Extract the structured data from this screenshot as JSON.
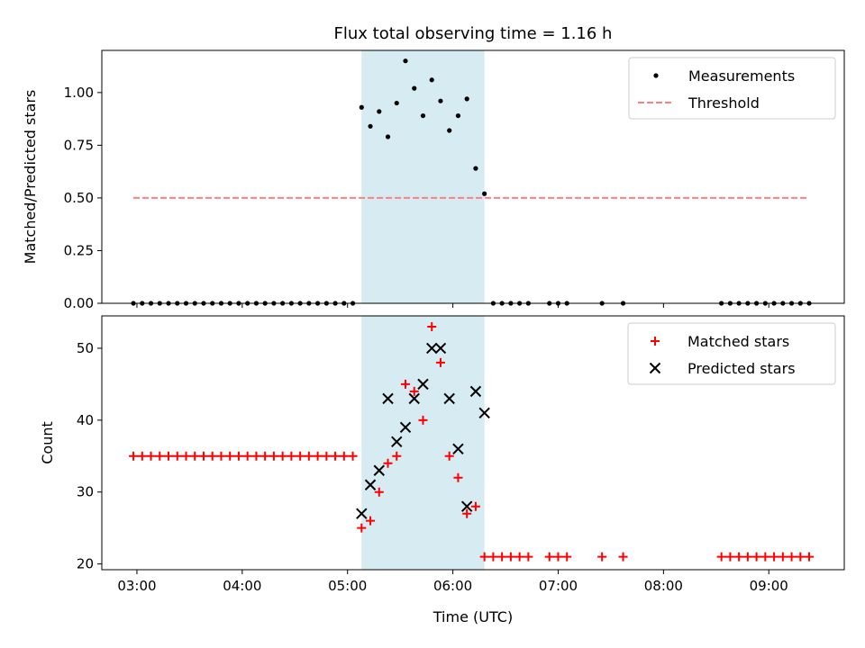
{
  "figure": {
    "title": "Flux total observing time = 1.16 h"
  },
  "chart_data": [
    {
      "type": "scatter",
      "ylabel": "Matched/Predicted stars",
      "xlabel": "",
      "xlim": [
        "02:40",
        "09:43"
      ],
      "ylim": [
        0,
        1.2
      ],
      "yticks": [
        0,
        0.25,
        0.5,
        0.75,
        1.0
      ],
      "ytick_labels": [
        "0.00",
        "0.25",
        "0.50",
        "0.75",
        "1.00"
      ],
      "xticks": [
        "03:00",
        "04:00",
        "05:00",
        "06:00",
        "07:00",
        "08:00",
        "09:00"
      ],
      "shaded_span": [
        "05:08",
        "06:18"
      ],
      "legend": {
        "position": "upper right",
        "entries": [
          "Measurements",
          "Threshold"
        ]
      },
      "series": [
        {
          "name": "Measurements",
          "marker": "dot",
          "color": "#000000",
          "points": [
            [
              "02:58",
              0
            ],
            [
              "03:03",
              0
            ],
            [
              "03:08",
              0
            ],
            [
              "03:13",
              0
            ],
            [
              "03:18",
              0
            ],
            [
              "03:23",
              0
            ],
            [
              "03:28",
              0
            ],
            [
              "03:33",
              0
            ],
            [
              "03:38",
              0
            ],
            [
              "03:43",
              0
            ],
            [
              "03:48",
              0
            ],
            [
              "03:53",
              0
            ],
            [
              "03:58",
              0
            ],
            [
              "04:03",
              0
            ],
            [
              "04:08",
              0
            ],
            [
              "04:13",
              0
            ],
            [
              "04:18",
              0
            ],
            [
              "04:23",
              0
            ],
            [
              "04:28",
              0
            ],
            [
              "04:33",
              0
            ],
            [
              "04:38",
              0
            ],
            [
              "04:43",
              0
            ],
            [
              "04:48",
              0
            ],
            [
              "04:53",
              0
            ],
            [
              "04:58",
              0
            ],
            [
              "05:03",
              0
            ],
            [
              "05:08",
              0.93
            ],
            [
              "05:13",
              0.84
            ],
            [
              "05:18",
              0.91
            ],
            [
              "05:23",
              0.79
            ],
            [
              "05:28",
              0.95
            ],
            [
              "05:33",
              1.15
            ],
            [
              "05:38",
              1.02
            ],
            [
              "05:43",
              0.89
            ],
            [
              "05:48",
              1.06
            ],
            [
              "05:53",
              0.96
            ],
            [
              "05:58",
              0.82
            ],
            [
              "06:03",
              0.89
            ],
            [
              "06:08",
              0.97
            ],
            [
              "06:13",
              0.64
            ],
            [
              "06:18",
              0.52
            ],
            [
              "06:23",
              0
            ],
            [
              "06:28",
              0
            ],
            [
              "06:33",
              0
            ],
            [
              "06:38",
              0
            ],
            [
              "06:43",
              0
            ],
            [
              "06:55",
              0
            ],
            [
              "07:00",
              0
            ],
            [
              "07:05",
              0
            ],
            [
              "07:25",
              0
            ],
            [
              "07:37",
              0
            ],
            [
              "08:33",
              0
            ],
            [
              "08:38",
              0
            ],
            [
              "08:43",
              0
            ],
            [
              "08:48",
              0
            ],
            [
              "08:53",
              0
            ],
            [
              "08:58",
              0
            ],
            [
              "09:03",
              0
            ],
            [
              "09:08",
              0
            ],
            [
              "09:13",
              0
            ],
            [
              "09:18",
              0
            ],
            [
              "09:23",
              0
            ]
          ]
        },
        {
          "name": "Threshold",
          "style": "dashed",
          "color": "#ff7f7f",
          "points": [
            [
              "02:58",
              0.5
            ],
            [
              "09:23",
              0.5
            ]
          ]
        }
      ]
    },
    {
      "type": "scatter",
      "ylabel": "Count",
      "xlabel": "Time (UTC)",
      "xlim": [
        "02:40",
        "09:43"
      ],
      "ylim": [
        19.2,
        54.5
      ],
      "yticks": [
        20,
        30,
        40,
        50
      ],
      "ytick_labels": [
        "20",
        "30",
        "40",
        "50"
      ],
      "xticks": [
        "03:00",
        "04:00",
        "05:00",
        "06:00",
        "07:00",
        "08:00",
        "09:00"
      ],
      "shaded_span": [
        "05:08",
        "06:18"
      ],
      "legend": {
        "position": "upper right",
        "entries": [
          "Matched stars",
          "Predicted stars"
        ]
      },
      "series": [
        {
          "name": "Matched stars",
          "marker": "plus",
          "color": "#ff0000",
          "points": [
            [
              "02:58",
              35
            ],
            [
              "03:03",
              35
            ],
            [
              "03:08",
              35
            ],
            [
              "03:13",
              35
            ],
            [
              "03:18",
              35
            ],
            [
              "03:23",
              35
            ],
            [
              "03:28",
              35
            ],
            [
              "03:33",
              35
            ],
            [
              "03:38",
              35
            ],
            [
              "03:43",
              35
            ],
            [
              "03:48",
              35
            ],
            [
              "03:53",
              35
            ],
            [
              "03:58",
              35
            ],
            [
              "04:03",
              35
            ],
            [
              "04:08",
              35
            ],
            [
              "04:13",
              35
            ],
            [
              "04:18",
              35
            ],
            [
              "04:23",
              35
            ],
            [
              "04:28",
              35
            ],
            [
              "04:33",
              35
            ],
            [
              "04:38",
              35
            ],
            [
              "04:43",
              35
            ],
            [
              "04:48",
              35
            ],
            [
              "04:53",
              35
            ],
            [
              "04:58",
              35
            ],
            [
              "05:03",
              35
            ],
            [
              "05:08",
              25
            ],
            [
              "05:13",
              26
            ],
            [
              "05:18",
              30
            ],
            [
              "05:23",
              34
            ],
            [
              "05:28",
              35
            ],
            [
              "05:33",
              45
            ],
            [
              "05:38",
              44
            ],
            [
              "05:43",
              40
            ],
            [
              "05:48",
              53
            ],
            [
              "05:53",
              48
            ],
            [
              "05:58",
              35
            ],
            [
              "06:03",
              32
            ],
            [
              "06:08",
              27
            ],
            [
              "06:13",
              28
            ],
            [
              "06:18",
              21
            ],
            [
              "06:23",
              21
            ],
            [
              "06:28",
              21
            ],
            [
              "06:33",
              21
            ],
            [
              "06:38",
              21
            ],
            [
              "06:43",
              21
            ],
            [
              "06:55",
              21
            ],
            [
              "07:00",
              21
            ],
            [
              "07:05",
              21
            ],
            [
              "07:25",
              21
            ],
            [
              "07:37",
              21
            ],
            [
              "08:33",
              21
            ],
            [
              "08:38",
              21
            ],
            [
              "08:43",
              21
            ],
            [
              "08:48",
              21
            ],
            [
              "08:53",
              21
            ],
            [
              "08:58",
              21
            ],
            [
              "09:03",
              21
            ],
            [
              "09:08",
              21
            ],
            [
              "09:13",
              21
            ],
            [
              "09:18",
              21
            ],
            [
              "09:23",
              21
            ]
          ]
        },
        {
          "name": "Predicted stars",
          "marker": "x",
          "color": "#000000",
          "points": [
            [
              "05:08",
              27
            ],
            [
              "05:13",
              31
            ],
            [
              "05:18",
              33
            ],
            [
              "05:23",
              43
            ],
            [
              "05:28",
              37
            ],
            [
              "05:33",
              39
            ],
            [
              "05:38",
              43
            ],
            [
              "05:43",
              45
            ],
            [
              "05:48",
              50
            ],
            [
              "05:53",
              50
            ],
            [
              "05:58",
              43
            ],
            [
              "06:03",
              36
            ],
            [
              "06:08",
              28
            ],
            [
              "06:13",
              44
            ],
            [
              "06:18",
              41
            ]
          ]
        }
      ]
    }
  ]
}
